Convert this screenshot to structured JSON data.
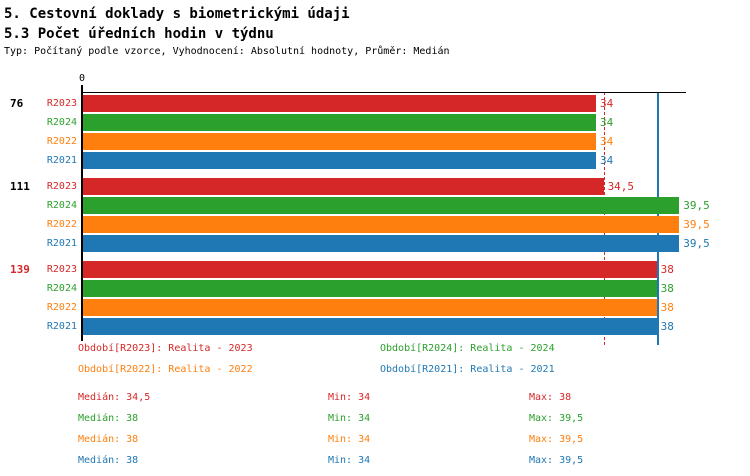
{
  "header": {
    "title_line1": "5. Cestovní doklady s biometrickými údaji",
    "title_line2": "5.3 Počet úředních hodin v týdnu",
    "subtitle": "Typ: Počítaný podle vzorce, Vyhodnocení: Absolutní hodnoty, Průměr: Medián"
  },
  "colors": {
    "R2023": "#d62728",
    "R2024": "#2ca02c",
    "R2022": "#ff7f0e",
    "R2021": "#1f77b4",
    "group_label_default": "#000000",
    "group_label_highlight": "#d62728",
    "axis": "#000000"
  },
  "chart_data": {
    "type": "bar",
    "orientation": "horizontal",
    "axis": {
      "origin_label": "0",
      "min": 0,
      "max": 40
    },
    "series_order": [
      "R2023",
      "R2024",
      "R2022",
      "R2021"
    ],
    "groups": [
      {
        "label": "76",
        "highlight": false,
        "bars": [
          {
            "series": "R2023",
            "value": 34
          },
          {
            "series": "R2024",
            "value": 34
          },
          {
            "series": "R2022",
            "value": 34
          },
          {
            "series": "R2021",
            "value": 34
          }
        ]
      },
      {
        "label": "111",
        "highlight": false,
        "bars": [
          {
            "series": "R2023",
            "value": 34.5
          },
          {
            "series": "R2024",
            "value": 39.5
          },
          {
            "series": "R2022",
            "value": 39.5
          },
          {
            "series": "R2021",
            "value": 39.5
          }
        ]
      },
      {
        "label": "139",
        "highlight": true,
        "bars": [
          {
            "series": "R2023",
            "value": 38
          },
          {
            "series": "R2024",
            "value": 38
          },
          {
            "series": "R2022",
            "value": 38
          },
          {
            "series": "R2021",
            "value": 38
          }
        ]
      }
    ],
    "median_lines": [
      {
        "value": 34.5,
        "series": "R2023",
        "style": "dashed"
      },
      {
        "value": 38,
        "series": "R2021",
        "style": "solid"
      }
    ],
    "decimal_separator": ","
  },
  "legend": {
    "items": [
      {
        "series": "R2023",
        "label": "Období[R2023]: Realita - 2023"
      },
      {
        "series": "R2024",
        "label": "Období[R2024]: Realita - 2024"
      },
      {
        "series": "R2022",
        "label": "Období[R2022]: Realita - 2022"
      },
      {
        "series": "R2021",
        "label": "Období[R2021]: Realita - 2021"
      }
    ]
  },
  "stats": {
    "rows": [
      {
        "series": "R2023",
        "median": "Medián: 34,5",
        "min": "Min: 34",
        "max": "Max: 38"
      },
      {
        "series": "R2024",
        "median": "Medián: 38",
        "min": "Min: 34",
        "max": "Max: 39,5"
      },
      {
        "series": "R2022",
        "median": "Medián: 38",
        "min": "Min: 34",
        "max": "Max: 39,5"
      },
      {
        "series": "R2021",
        "median": "Medián: 38",
        "min": "Min: 34",
        "max": "Max: 39,5"
      }
    ]
  }
}
